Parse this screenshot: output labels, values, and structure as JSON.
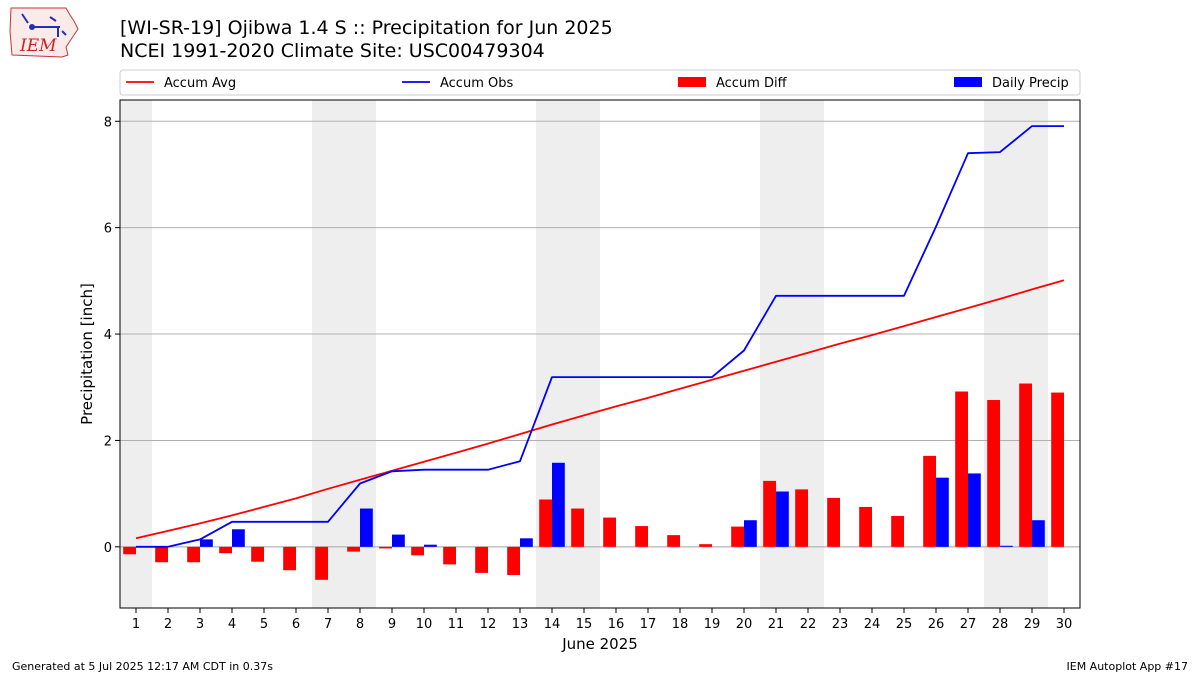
{
  "header": {
    "title_line1": "[WI-SR-19] Ojibwa 1.4 S :: Precipitation for Jun 2025",
    "title_line2": "NCEI 1991-2020 Climate Site: USC00479304"
  },
  "logo": {
    "text": "IEM"
  },
  "footer": {
    "left": "Generated at 5 Jul 2025 12:17 AM CDT in 0.37s",
    "right": "IEM Autoplot App #17"
  },
  "chart_data": {
    "type": "bar",
    "title": "[WI-SR-19] Ojibwa 1.4 S :: Precipitation for Jun 2025",
    "subtitle": "NCEI 1991-2020 Climate Site: USC00479304",
    "xlabel": "June 2025",
    "ylabel": "Precipitation [inch]",
    "x": [
      1,
      2,
      3,
      4,
      5,
      6,
      7,
      8,
      9,
      10,
      11,
      12,
      13,
      14,
      15,
      16,
      17,
      18,
      19,
      20,
      21,
      22,
      23,
      24,
      25,
      26,
      27,
      28,
      29,
      30
    ],
    "xlim": [
      0.5,
      30.5
    ],
    "ylim": [
      -1.15,
      8.4
    ],
    "yticks": [
      0,
      2,
      4,
      6,
      8
    ],
    "grid": "horizontal",
    "legend_position": "top",
    "weekend_shading": [
      1,
      7,
      8,
      14,
      15,
      21,
      22,
      28,
      29
    ],
    "colors": {
      "accum_avg": "#ff0000",
      "accum_obs": "#0000ff",
      "accum_diff": "#ff0000",
      "daily_precip": "#0000ff",
      "weekend_band": "#eeeeee",
      "grid": "#b0b0b0"
    },
    "series": [
      {
        "name": "Accum Avg",
        "kind": "line",
        "values": [
          0.16,
          0.3,
          0.44,
          0.59,
          0.75,
          0.91,
          1.09,
          1.26,
          1.43,
          1.6,
          1.77,
          1.94,
          2.12,
          2.3,
          2.47,
          2.64,
          2.8,
          2.97,
          3.14,
          3.31,
          3.48,
          3.65,
          3.82,
          3.98,
          4.15,
          4.32,
          4.49,
          4.66,
          4.84,
          5.01
        ]
      },
      {
        "name": "Accum Obs",
        "kind": "line",
        "values": [
          0.0,
          0.0,
          0.14,
          0.47,
          0.47,
          0.47,
          0.47,
          1.19,
          1.42,
          1.45,
          1.45,
          1.45,
          1.61,
          3.19,
          3.19,
          3.19,
          3.19,
          3.19,
          3.19,
          3.69,
          4.72,
          4.72,
          4.72,
          4.72,
          4.72,
          6.02,
          7.4,
          7.42,
          7.91,
          7.91
        ]
      },
      {
        "name": "Accum Diff",
        "kind": "bar",
        "values": [
          -0.14,
          -0.29,
          -0.29,
          -0.12,
          -0.28,
          -0.44,
          -0.62,
          -0.09,
          -0.03,
          -0.16,
          -0.33,
          -0.49,
          -0.53,
          0.89,
          0.72,
          0.55,
          0.39,
          0.22,
          0.05,
          0.38,
          1.24,
          1.08,
          0.92,
          0.75,
          0.58,
          1.71,
          2.92,
          2.76,
          3.07,
          2.9
        ]
      },
      {
        "name": "Daily Precip",
        "kind": "bar",
        "values": [
          0.0,
          0.0,
          0.14,
          0.33,
          0.0,
          0.0,
          0.0,
          0.72,
          0.23,
          0.04,
          0.0,
          0.0,
          0.16,
          1.58,
          0.0,
          0.0,
          0.0,
          0.0,
          0.0,
          0.5,
          1.04,
          0.0,
          0.0,
          0.0,
          0.0,
          1.3,
          1.38,
          0.02,
          0.5,
          0.0
        ]
      }
    ]
  }
}
